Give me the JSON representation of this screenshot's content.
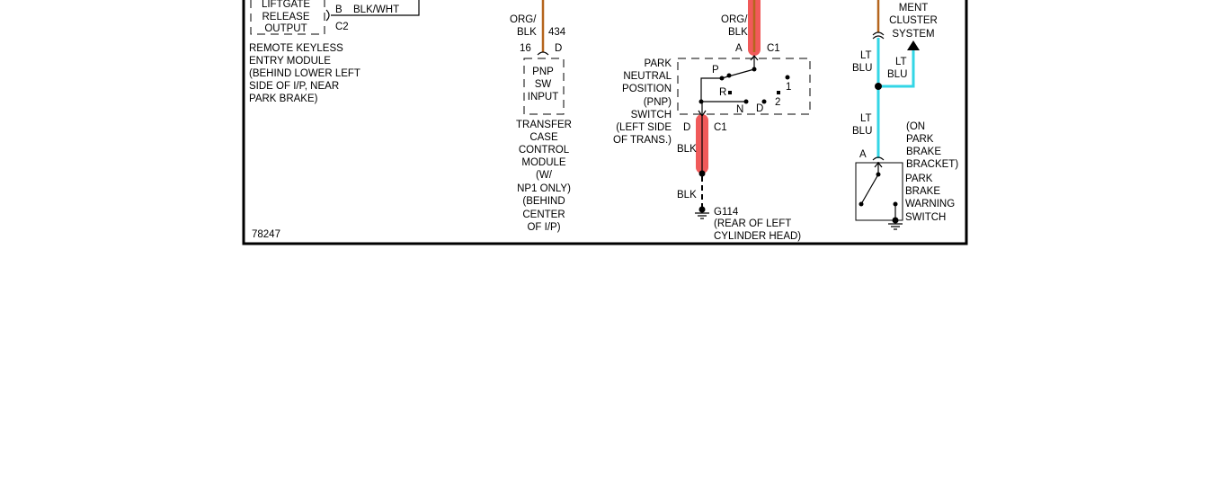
{
  "diagram_id": "78247",
  "colors": {
    "wire_org_blk": "#b5651d",
    "wire_lt_blu": "#33d6e6",
    "connector_highlight": "#f05a5a"
  },
  "rke_module": {
    "output_lines": [
      "LIFTGATE",
      "RELEASE",
      "OUTPUT"
    ],
    "pin": "B",
    "wire": "BLK/WHT",
    "connector": "C2",
    "name_lines": [
      "REMOTE KEYLESS",
      "ENTRY MODULE",
      "(BEHIND LOWER LEFT",
      "SIDE OF I/P, NEAR",
      "PARK BRAKE)"
    ]
  },
  "tccm": {
    "wire_color_lines": [
      "ORG/",
      "BLK"
    ],
    "circuit": "434",
    "pin": "16",
    "connector": "D",
    "input_lines": [
      "PNP",
      "SW",
      "INPUT"
    ],
    "name_lines": [
      "TRANSFER",
      "CASE",
      "CONTROL",
      "MODULE",
      "(W/",
      "NP1 ONLY)",
      "(BEHIND",
      "CENTER",
      "OF I/P)"
    ]
  },
  "pnp_switch": {
    "wire_in_lines": [
      "ORG/",
      "BLK"
    ],
    "pin_in": "A",
    "connector_in": "C1",
    "name_lines": [
      "PARK",
      "NEUTRAL",
      "POSITION",
      "(PNP)",
      "SWITCH",
      "(LEFT SIDE",
      "OF TRANS.)"
    ],
    "positions": {
      "p": "P",
      "r": "R",
      "n": "N",
      "d": "D",
      "one": "1",
      "two": "2"
    },
    "pin_out": "D",
    "connector_out": "C1",
    "wire_out": "BLK",
    "wire_ground": "BLK",
    "ground": "G114",
    "ground_location_lines": [
      "(REAR OF LEFT",
      "CYLINDER HEAD)"
    ]
  },
  "park_brake": {
    "cluster_lines": [
      "MENT",
      "CLUSTER",
      "SYSTEM"
    ],
    "wire_lines_1": [
      "LT",
      "BLU"
    ],
    "wire_lines_2": [
      "LT",
      "BLU"
    ],
    "wire_lines_3": [
      "LT",
      "BLU"
    ],
    "pin": "A",
    "location_lines": [
      "(ON",
      "PARK",
      "BRAKE",
      "BRACKET)"
    ],
    "switch_lines": [
      "PARK",
      "BRAKE",
      "WARNING",
      "SWITCH"
    ]
  }
}
